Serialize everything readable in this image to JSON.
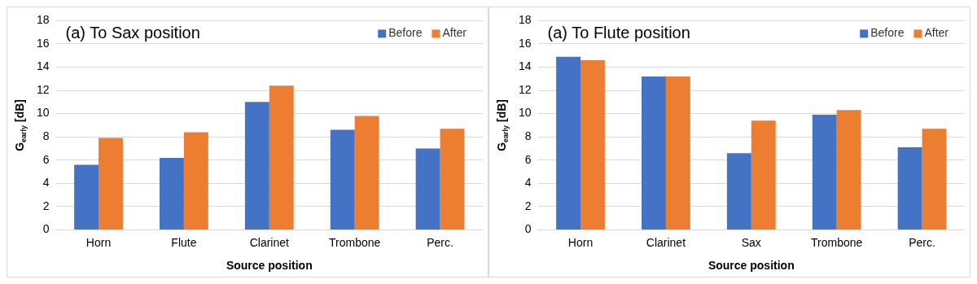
{
  "chart_data": [
    {
      "type": "bar",
      "title": "(a) To Sax position",
      "xlabel": "Source position",
      "ylabel": "G$_{early}$ [dB]",
      "categories": [
        "Horn",
        "Flute",
        "Clarinet",
        "Trombone",
        "Perc."
      ],
      "series": [
        {
          "name": "Before",
          "color": "#4472c4",
          "values": [
            5.6,
            6.2,
            11.0,
            8.6,
            7.0
          ]
        },
        {
          "name": "After",
          "color": "#ed7d31",
          "values": [
            7.9,
            8.4,
            12.4,
            9.8,
            8.7
          ]
        }
      ],
      "ylim": [
        0,
        18
      ],
      "yticks": [
        0,
        2,
        4,
        6,
        8,
        10,
        12,
        14,
        16,
        18
      ],
      "grid": "y",
      "legend": "top right"
    },
    {
      "type": "bar",
      "title": "(a) To Flute position",
      "xlabel": "Source position",
      "ylabel": "G$_{early}$ [dB]",
      "categories": [
        "Horn",
        "Clarinet",
        "Sax",
        "Trombone",
        "Perc."
      ],
      "series": [
        {
          "name": "Before",
          "color": "#4472c4",
          "values": [
            14.9,
            13.2,
            6.6,
            9.9,
            7.1
          ]
        },
        {
          "name": "After",
          "color": "#ed7d31",
          "values": [
            14.6,
            13.2,
            9.4,
            10.3,
            8.7
          ]
        }
      ],
      "ylim": [
        0,
        18
      ],
      "yticks": [
        0,
        2,
        4,
        6,
        8,
        10,
        12,
        14,
        16,
        18
      ],
      "grid": "y",
      "legend": "top right"
    }
  ]
}
